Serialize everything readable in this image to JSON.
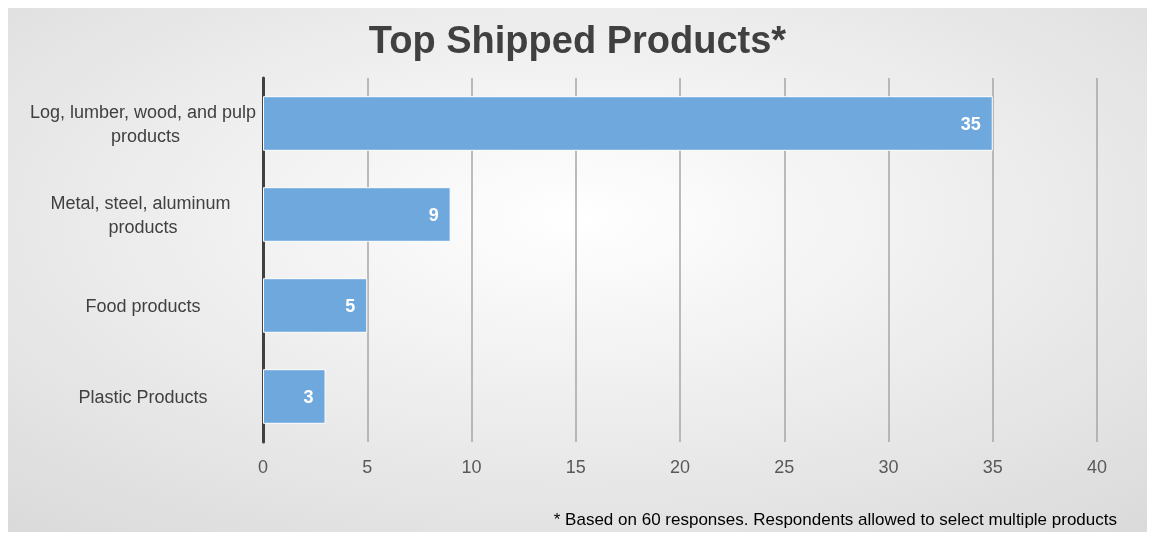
{
  "chart_data": {
    "type": "bar",
    "orientation": "horizontal",
    "title": "Top Shipped Products*",
    "categories": [
      "Log, lumber, wood, and pulp products",
      "Metal, steel, aluminum products",
      "Food products",
      "Plastic Products"
    ],
    "values": [
      35,
      9,
      5,
      3
    ],
    "color": "#6fa8dc",
    "xlim": [
      0,
      40
    ],
    "xticks": [
      0,
      5,
      10,
      15,
      20,
      25,
      30,
      35,
      40
    ],
    "grid": "x",
    "data_labels": true,
    "annotations": [
      "* Based on 60 responses. Respondents allowed to select multiple products"
    ]
  }
}
